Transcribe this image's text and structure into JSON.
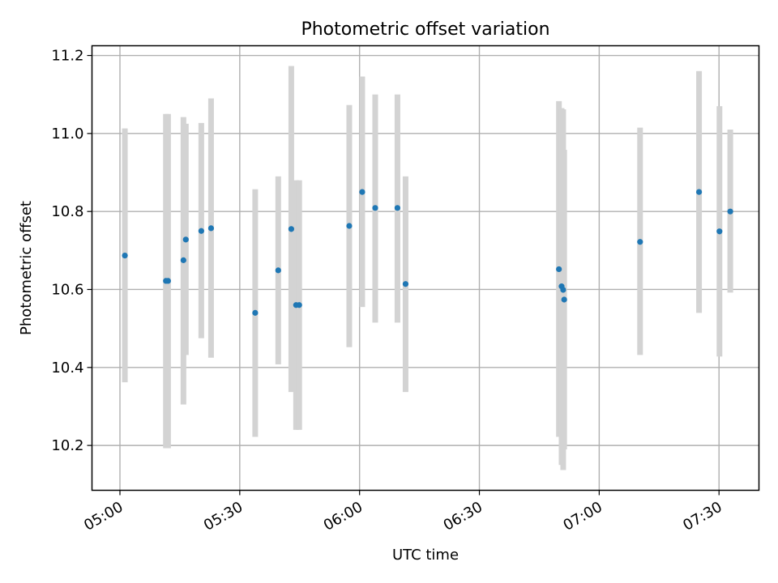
{
  "chart_data": {
    "type": "scatter",
    "title": "Photometric offset variation",
    "xlabel": "UTC time",
    "ylabel": "Photometric offset",
    "x_unit": "HH:MM UTC",
    "xlim": [
      "04:53",
      "07:40"
    ],
    "ylim": [
      10.085,
      11.225
    ],
    "x_ticks": [
      "05:00",
      "05:30",
      "06:00",
      "06:30",
      "07:00",
      "07:30"
    ],
    "y_ticks": [
      10.2,
      10.4,
      10.6,
      10.8,
      11.0,
      11.2
    ],
    "y_tick_labels": [
      "10.2",
      "10.4",
      "10.6",
      "10.8",
      "11.0",
      "11.2"
    ],
    "grid": true,
    "errorbar_color": "#d3d3d3",
    "point_color": "#1f77b4",
    "points": [
      {
        "t": "05:01:14",
        "y": 10.687,
        "lo": 10.362,
        "hi": 11.013
      },
      {
        "t": "05:11:31",
        "y": 10.622,
        "lo": 10.193,
        "hi": 11.05
      },
      {
        "t": "05:12:03",
        "y": 10.622,
        "lo": 10.193,
        "hi": 11.05
      },
      {
        "t": "05:15:54",
        "y": 10.675,
        "lo": 10.305,
        "hi": 11.042
      },
      {
        "t": "05:16:30",
        "y": 10.728,
        "lo": 10.432,
        "hi": 11.025
      },
      {
        "t": "05:20:22",
        "y": 10.75,
        "lo": 10.475,
        "hi": 11.027
      },
      {
        "t": "05:22:49",
        "y": 10.757,
        "lo": 10.425,
        "hi": 11.09
      },
      {
        "t": "05:33:52",
        "y": 10.54,
        "lo": 10.222,
        "hi": 10.857
      },
      {
        "t": "05:39:38",
        "y": 10.649,
        "lo": 10.408,
        "hi": 10.89
      },
      {
        "t": "05:42:54",
        "y": 10.755,
        "lo": 10.337,
        "hi": 11.173
      },
      {
        "t": "05:44:06",
        "y": 10.56,
        "lo": 10.24,
        "hi": 10.88
      },
      {
        "t": "05:44:53",
        "y": 10.56,
        "lo": 10.24,
        "hi": 10.88
      },
      {
        "t": "05:57:25",
        "y": 10.763,
        "lo": 10.452,
        "hi": 11.073
      },
      {
        "t": "06:00:40",
        "y": 10.85,
        "lo": 10.555,
        "hi": 11.146
      },
      {
        "t": "06:03:55",
        "y": 10.809,
        "lo": 10.515,
        "hi": 11.1
      },
      {
        "t": "06:09:29",
        "y": 10.809,
        "lo": 10.515,
        "hi": 11.1
      },
      {
        "t": "06:11:31",
        "y": 10.614,
        "lo": 10.337,
        "hi": 10.89
      },
      {
        "t": "06:49:55",
        "y": 10.652,
        "lo": 10.222,
        "hi": 11.083
      },
      {
        "t": "06:50:35",
        "y": 10.608,
        "lo": 10.15,
        "hi": 11.065
      },
      {
        "t": "06:50:59",
        "y": 10.599,
        "lo": 10.137,
        "hi": 11.062
      },
      {
        "t": "06:51:14",
        "y": 10.574,
        "lo": 10.19,
        "hi": 10.958
      },
      {
        "t": "07:10:14",
        "y": 10.722,
        "lo": 10.432,
        "hi": 11.015
      },
      {
        "t": "07:25:00",
        "y": 10.85,
        "lo": 10.54,
        "hi": 11.16
      },
      {
        "t": "07:30:07",
        "y": 10.749,
        "lo": 10.428,
        "hi": 11.07
      },
      {
        "t": "07:32:49",
        "y": 10.8,
        "lo": 10.592,
        "hi": 11.01
      }
    ]
  }
}
